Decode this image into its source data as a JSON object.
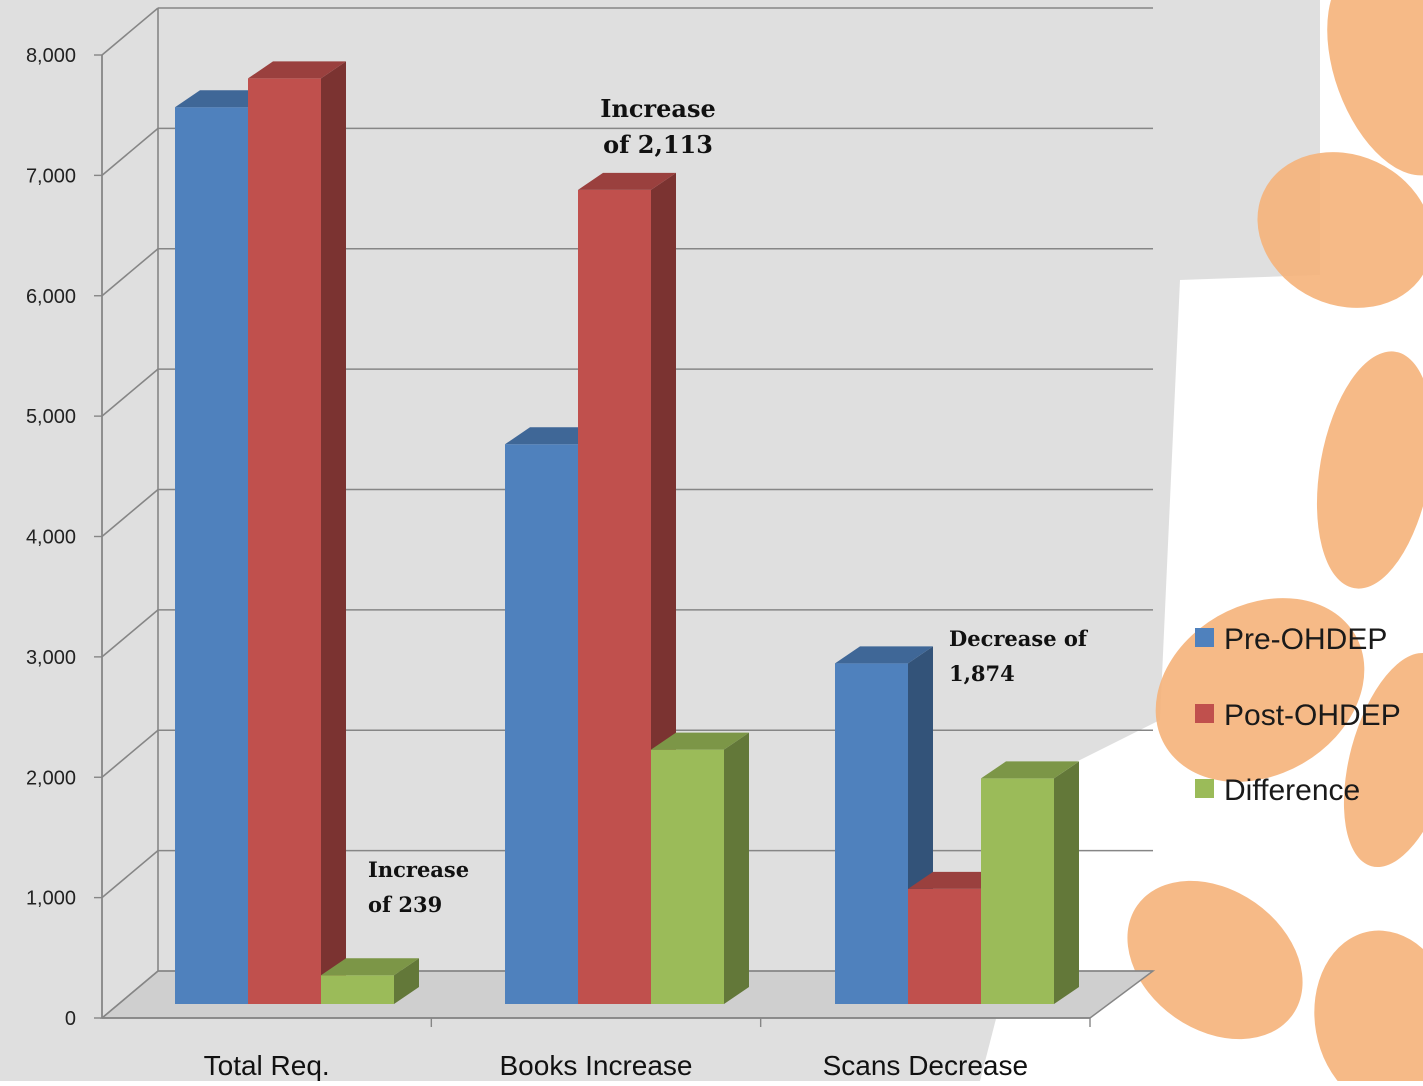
{
  "colors": {
    "pre": "#4F81BD",
    "post": "#C0504D",
    "diff": "#9BBB59",
    "grid": "#868686",
    "backdrop": "#d9d9d9",
    "leaf": "#f5b37a"
  },
  "chart_data": {
    "type": "bar",
    "three_d": true,
    "categories": [
      "Total Req.",
      "Books Increase",
      "Scans Decrease"
    ],
    "series": [
      {
        "name": "Pre-OHDEP",
        "values": [
          7450,
          4650,
          2830
        ]
      },
      {
        "name": "Post-OHDEP",
        "values": [
          7689,
          6763,
          956
        ]
      },
      {
        "name": "Difference",
        "values": [
          239,
          2113,
          1874
        ]
      }
    ],
    "ylim": [
      0,
      8000
    ],
    "yticks": [
      {
        "value": 0,
        "label": "0"
      },
      {
        "value": 1000,
        "label": "1,000"
      },
      {
        "value": 2000,
        "label": "2,000"
      },
      {
        "value": 3000,
        "label": "3,000"
      },
      {
        "value": 4000,
        "label": "4,000"
      },
      {
        "value": 5000,
        "label": "5,000"
      },
      {
        "value": 6000,
        "label": "6,000"
      },
      {
        "value": 7000,
        "label": "7,000"
      },
      {
        "value": 8000,
        "label": "8,000"
      }
    ],
    "grid": true,
    "legend": "right",
    "annotations": [
      {
        "category": 0,
        "lines": [
          "Increase",
          "of 239"
        ]
      },
      {
        "category": 1,
        "lines": [
          "Increase",
          "of 2,113"
        ]
      },
      {
        "category": 2,
        "lines": [
          "Decrease of",
          "1,874"
        ]
      }
    ]
  }
}
